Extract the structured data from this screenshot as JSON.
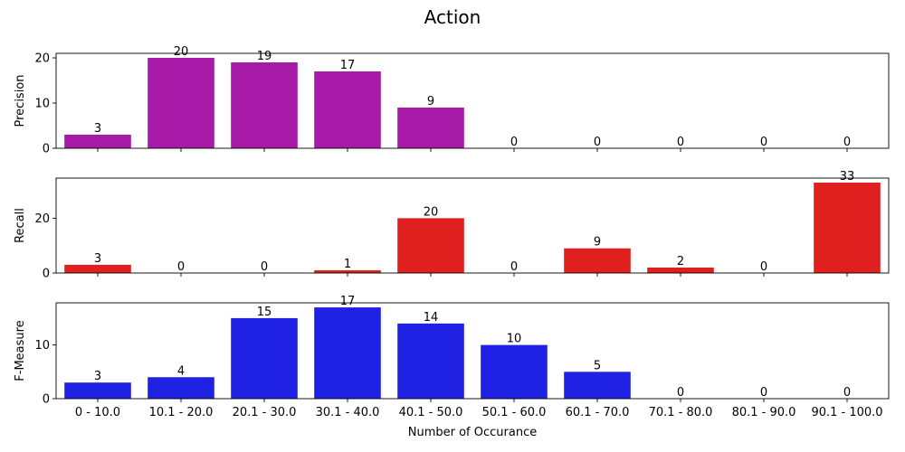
{
  "chart_data": {
    "type": "bar",
    "title": "Action",
    "xlabel": "Number of Occurance",
    "categories": [
      "0 - 10.0",
      "10.1 - 20.0",
      "20.1 - 30.0",
      "30.1 - 40.0",
      "40.1 - 50.0",
      "50.1 - 60.0",
      "60.1 - 70.0",
      "70.1 - 80.0",
      "80.1 - 90.0",
      "90.1 - 100.0"
    ],
    "subplots": [
      {
        "ylabel": "Precision",
        "color": "#a719a7",
        "values": [
          3,
          20,
          19,
          17,
          9,
          0,
          0,
          0,
          0,
          0
        ],
        "ylim": [
          0,
          21
        ],
        "yticks": [
          0,
          10,
          20
        ]
      },
      {
        "ylabel": "Recall",
        "color": "#e01f1f",
        "values": [
          3,
          0,
          0,
          1,
          20,
          0,
          9,
          2,
          0,
          33
        ],
        "ylim": [
          0,
          34.65
        ],
        "yticks": [
          0,
          20
        ]
      },
      {
        "ylabel": "F-Measure",
        "color": "#1f22e2",
        "values": [
          3,
          4,
          15,
          17,
          14,
          10,
          5,
          0,
          0,
          0
        ],
        "ylim": [
          0,
          17.85
        ],
        "yticks": [
          0,
          10
        ]
      }
    ],
    "grid": false,
    "legend": "none"
  }
}
